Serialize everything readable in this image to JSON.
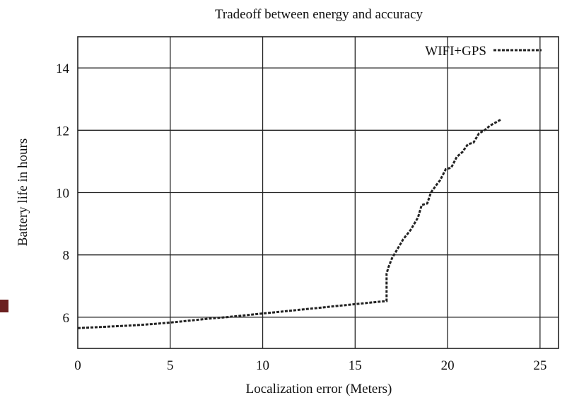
{
  "chart_data": {
    "type": "line",
    "title": "Tradeoff between energy and accuracy",
    "xlabel": "Localization error (Meters)",
    "ylabel": "Battery life in hours",
    "xlim": [
      0,
      26
    ],
    "ylim": [
      5,
      15
    ],
    "xticks": [
      0,
      5,
      10,
      15,
      20,
      25
    ],
    "yticks": [
      6,
      8,
      10,
      12,
      14
    ],
    "grid": true,
    "legend_position": "top-right",
    "series": [
      {
        "name": "WIFI+GPS",
        "x": [
          0,
          1,
          2,
          3,
          4,
          5,
          6,
          7,
          8,
          9,
          10,
          11,
          12,
          13,
          14,
          15,
          16,
          16.7,
          16.7,
          16.8,
          17,
          17.3,
          17.6,
          18,
          18.4,
          18.6,
          18.9,
          19.1,
          19.4,
          19.6,
          19.9,
          20.2,
          20.5,
          20.8,
          21.1,
          21.4,
          21.7,
          22,
          22.3,
          22.6,
          22.9
        ],
        "y": [
          5.65,
          5.68,
          5.71,
          5.74,
          5.78,
          5.83,
          5.89,
          5.95,
          6.0,
          6.06,
          6.12,
          6.18,
          6.24,
          6.3,
          6.36,
          6.42,
          6.48,
          6.52,
          7.4,
          7.6,
          7.9,
          8.2,
          8.5,
          8.8,
          9.2,
          9.6,
          9.65,
          10.0,
          10.25,
          10.4,
          10.75,
          10.8,
          11.15,
          11.3,
          11.55,
          11.6,
          11.9,
          12.0,
          12.15,
          12.25,
          12.35
        ]
      }
    ]
  }
}
